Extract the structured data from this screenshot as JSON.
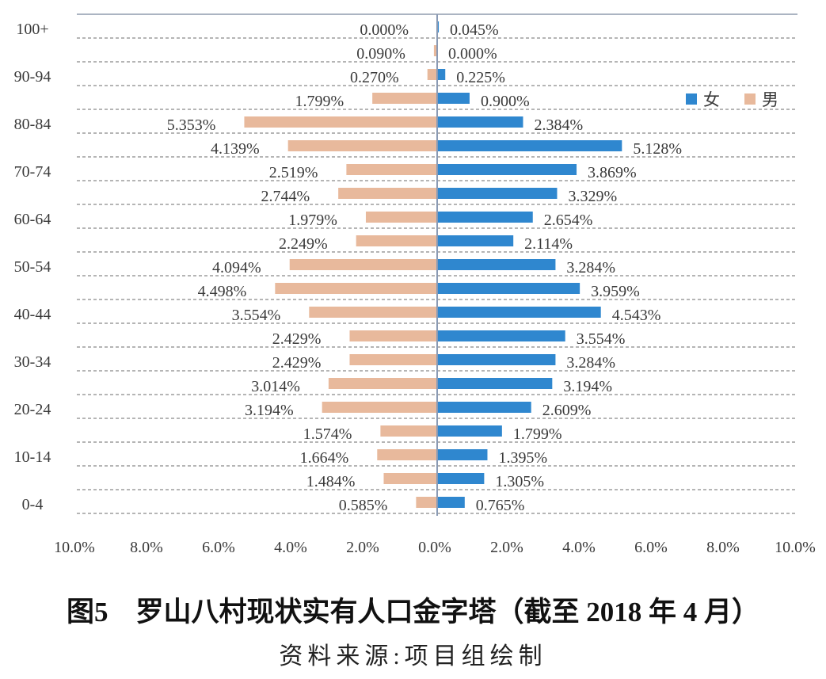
{
  "chart_data": {
    "type": "bar",
    "orientation": "horizontal",
    "title": "图5　罗山八村现状实有人口金字塔（截至 2018 年 4 月）",
    "source": "资料来源:项目组绘制",
    "categories": [
      "100+",
      "",
      "90-94",
      "",
      "80-84",
      "",
      "70-74",
      "",
      "60-64",
      "",
      "50-54",
      "",
      "40-44",
      "",
      "30-34",
      "",
      "20-24",
      "",
      "10-14",
      "",
      "0-4"
    ],
    "series": [
      {
        "name": "女",
        "color": "#2f87cf",
        "side": "right",
        "values": [
          0.045,
          0,
          0.225,
          0.9,
          2.384,
          5.128,
          3.869,
          3.329,
          2.654,
          2.114,
          3.284,
          3.959,
          4.543,
          3.554,
          3.284,
          3.194,
          2.609,
          1.799,
          1.395,
          1.305,
          0.765
        ],
        "data_labels": [
          "0.045%",
          "0.000%",
          "0.225%",
          "0.900%",
          "2.384%",
          "5.128%",
          "3.869%",
          "3.329%",
          "2.654%",
          "2.114%",
          "3.284%",
          "3.959%",
          "4.543%",
          "3.554%",
          "3.284%",
          "3.194%",
          "2.609%",
          "1.799%",
          "1.395%",
          "1.305%",
          "0.765%"
        ]
      },
      {
        "name": "男",
        "color": "#e8b99c",
        "side": "left",
        "values": [
          0,
          0.09,
          0.27,
          1.799,
          5.353,
          4.139,
          2.519,
          2.744,
          1.979,
          2.249,
          4.094,
          4.498,
          3.554,
          2.429,
          2.429,
          3.014,
          3.194,
          1.574,
          1.664,
          1.484,
          0.585
        ],
        "data_labels": [
          "0.000%",
          "0.090%",
          "0.270%",
          "1.799%",
          "5.353%",
          "4.139%",
          "2.519%",
          "2.744%",
          "1.979%",
          "2.249%",
          "4.094%",
          "4.498%",
          "3.554%",
          "2.429%",
          "2.429%",
          "3.014%",
          "3.194%",
          "1.574%",
          "1.664%",
          "1.484%",
          "0.585%"
        ]
      }
    ],
    "xlim": [
      -10,
      10
    ],
    "xticks": [
      -10,
      -8,
      -6,
      -4,
      -2,
      0,
      2,
      4,
      6,
      8,
      10
    ],
    "xtick_labels": [
      "10.0%",
      "8.0%",
      "6.0%",
      "4.0%",
      "2.0%",
      "0.0%",
      "2.0%",
      "4.0%",
      "6.0%",
      "8.0%",
      "10.0%"
    ],
    "grid": true,
    "legend": "top-right"
  }
}
